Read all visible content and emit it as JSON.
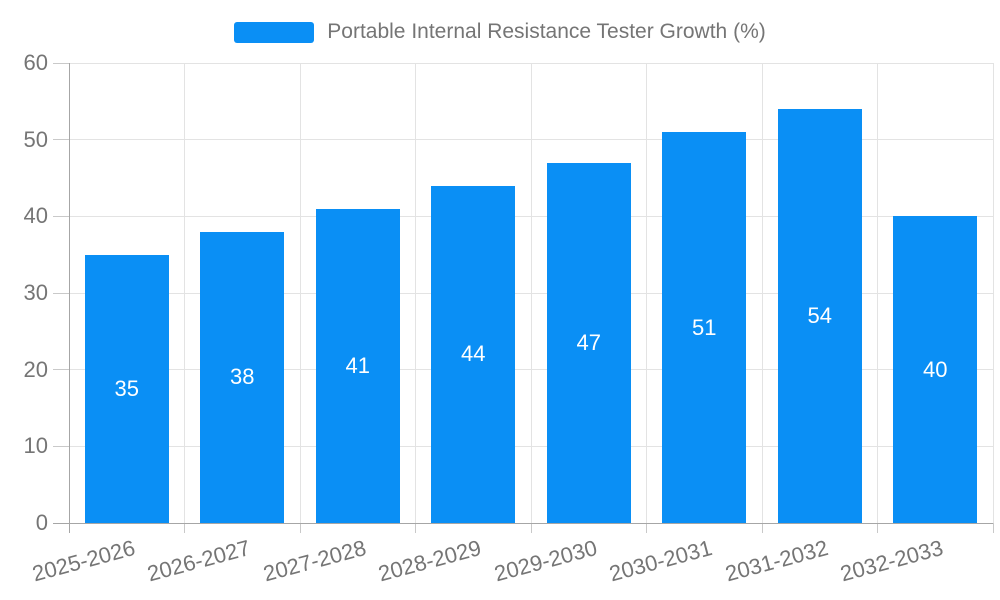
{
  "chart_data": {
    "type": "bar",
    "title": "Portable Internal Resistance Tester Growth (%)",
    "categories": [
      "2025-2026",
      "2026-2027",
      "2027-2028",
      "2028-2029",
      "2029-2030",
      "2030-2031",
      "2031-2032",
      "2032-2033"
    ],
    "series": [
      {
        "name": "Portable Internal Resistance Tester Growth (%)",
        "values": [
          35,
          38,
          41,
          44,
          47,
          51,
          54,
          40
        ]
      }
    ],
    "xlabel": "",
    "ylabel": "",
    "ylim": [
      0,
      60
    ],
    "yticks": [
      0,
      10,
      20,
      30,
      40,
      50,
      60
    ],
    "grid": "on",
    "legend_position": "top",
    "x_label_rotation_deg": -15,
    "value_label_position": "inside-middle",
    "colors": {
      "bar": "#0a8ff5",
      "value_label": "#ffffff",
      "tick_label": "#757575",
      "legend_label": "#757575",
      "gridline": "#e3e3e3",
      "axis_line": "#a6a6a6",
      "tick_mark": "#c9c9c9",
      "background": "#ffffff"
    }
  },
  "legend": {
    "label": "Portable Internal Resistance Tester Growth (%)"
  }
}
